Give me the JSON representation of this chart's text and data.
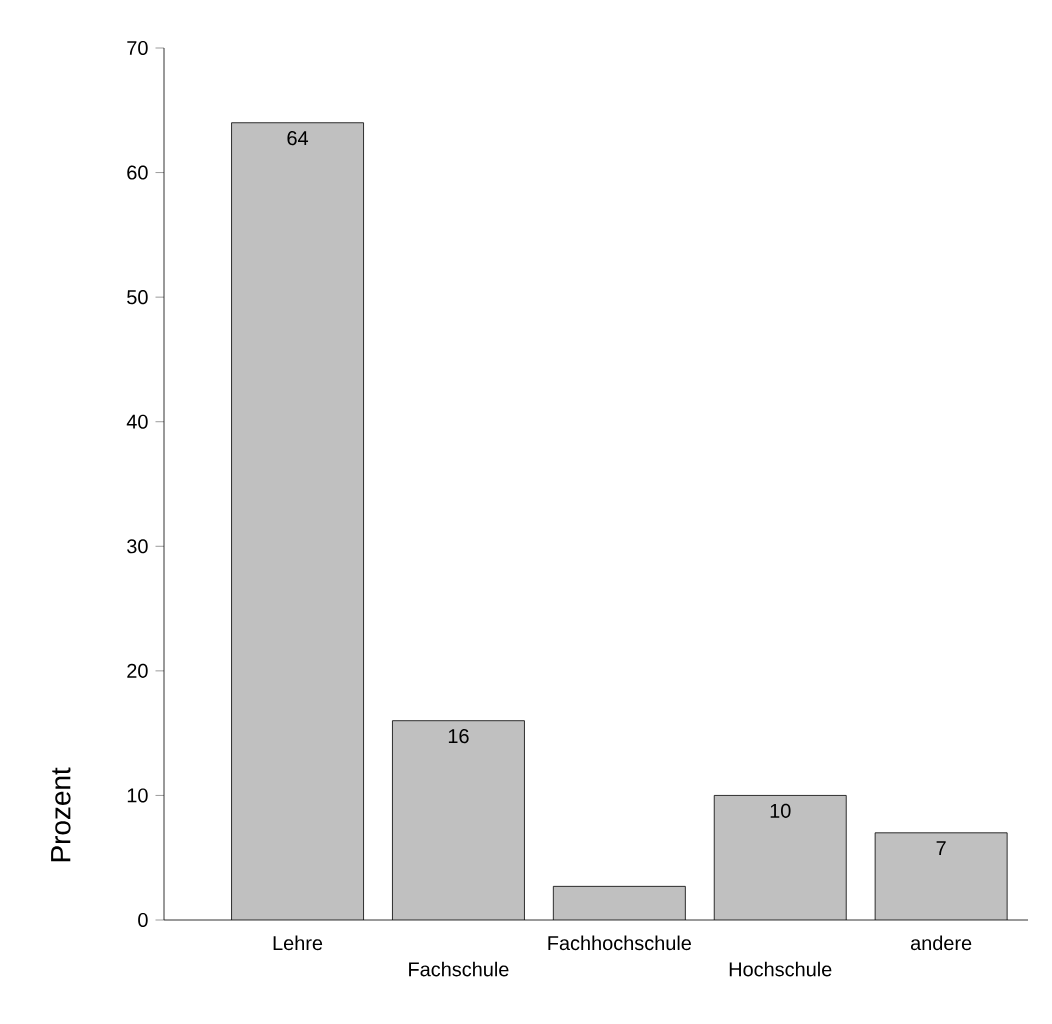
{
  "chart_data": {
    "type": "bar",
    "ylabel": "Prozent",
    "categories": [
      "Lehre",
      "Fachschule",
      "Fachhochschule",
      "Hochschule",
      "andere"
    ],
    "values": [
      64,
      16,
      2.7,
      10,
      7
    ],
    "value_labels": [
      "64",
      "16",
      null,
      "10",
      "7"
    ],
    "color": "#c0c0c0",
    "ylim": [
      0,
      70
    ],
    "yticks": [
      0,
      10,
      20,
      30,
      40,
      50,
      60,
      70
    ],
    "grid": false
  }
}
